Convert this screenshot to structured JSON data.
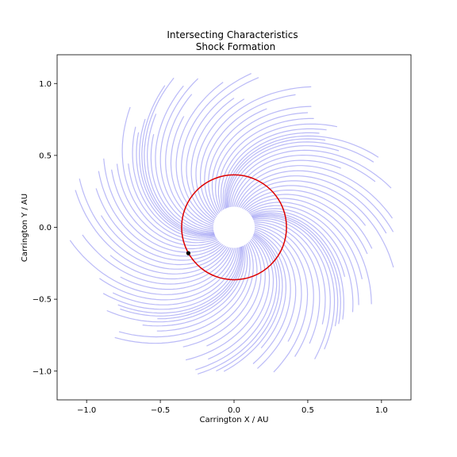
{
  "chart_data": {
    "type": "line",
    "title_lines": [
      "Intersecting Characteristics",
      "Shock Formation"
    ],
    "xlabel": "Carrington X / AU",
    "ylabel": "Carrington Y / AU",
    "xlim": [
      -1.2,
      1.2
    ],
    "ylim": [
      -1.2,
      1.2
    ],
    "xticks": [
      -1.0,
      -0.5,
      0.0,
      0.5,
      1.0
    ],
    "xtick_labels": [
      "−1.0",
      "−0.5",
      "0.0",
      "0.5",
      "1.0"
    ],
    "yticks": [
      -1.0,
      -0.5,
      0.0,
      0.5,
      1.0
    ],
    "ytick_labels": [
      "−1.0",
      "−0.5",
      "0.0",
      "0.5",
      "1.0"
    ],
    "grid": false,
    "characteristics": {
      "count": 90,
      "inner_radius_au": 0.14,
      "outer_radius_au_range": [
        0.82,
        1.12
      ],
      "spiral_twist_rad_per_au": 1.55,
      "color": "#6666ee",
      "opacity": 0.45
    },
    "clusters": [
      {
        "center_deg": 200,
        "width_deg": 14,
        "strength": 0.55
      },
      {
        "center_deg": 290,
        "width_deg": 12,
        "strength": 0.5
      },
      {
        "center_deg": 340,
        "width_deg": 10,
        "strength": 0.45
      },
      {
        "center_deg": 30,
        "width_deg": 12,
        "strength": 0.5
      },
      {
        "center_deg": 110,
        "width_deg": 12,
        "strength": 0.45
      }
    ],
    "reference_circle": {
      "radius_au": 0.36,
      "color": "#dd0000"
    },
    "inner_boundary_radius_au": 0.14,
    "marker_point": {
      "x": -0.31,
      "y": -0.18,
      "color": "#000000"
    }
  }
}
